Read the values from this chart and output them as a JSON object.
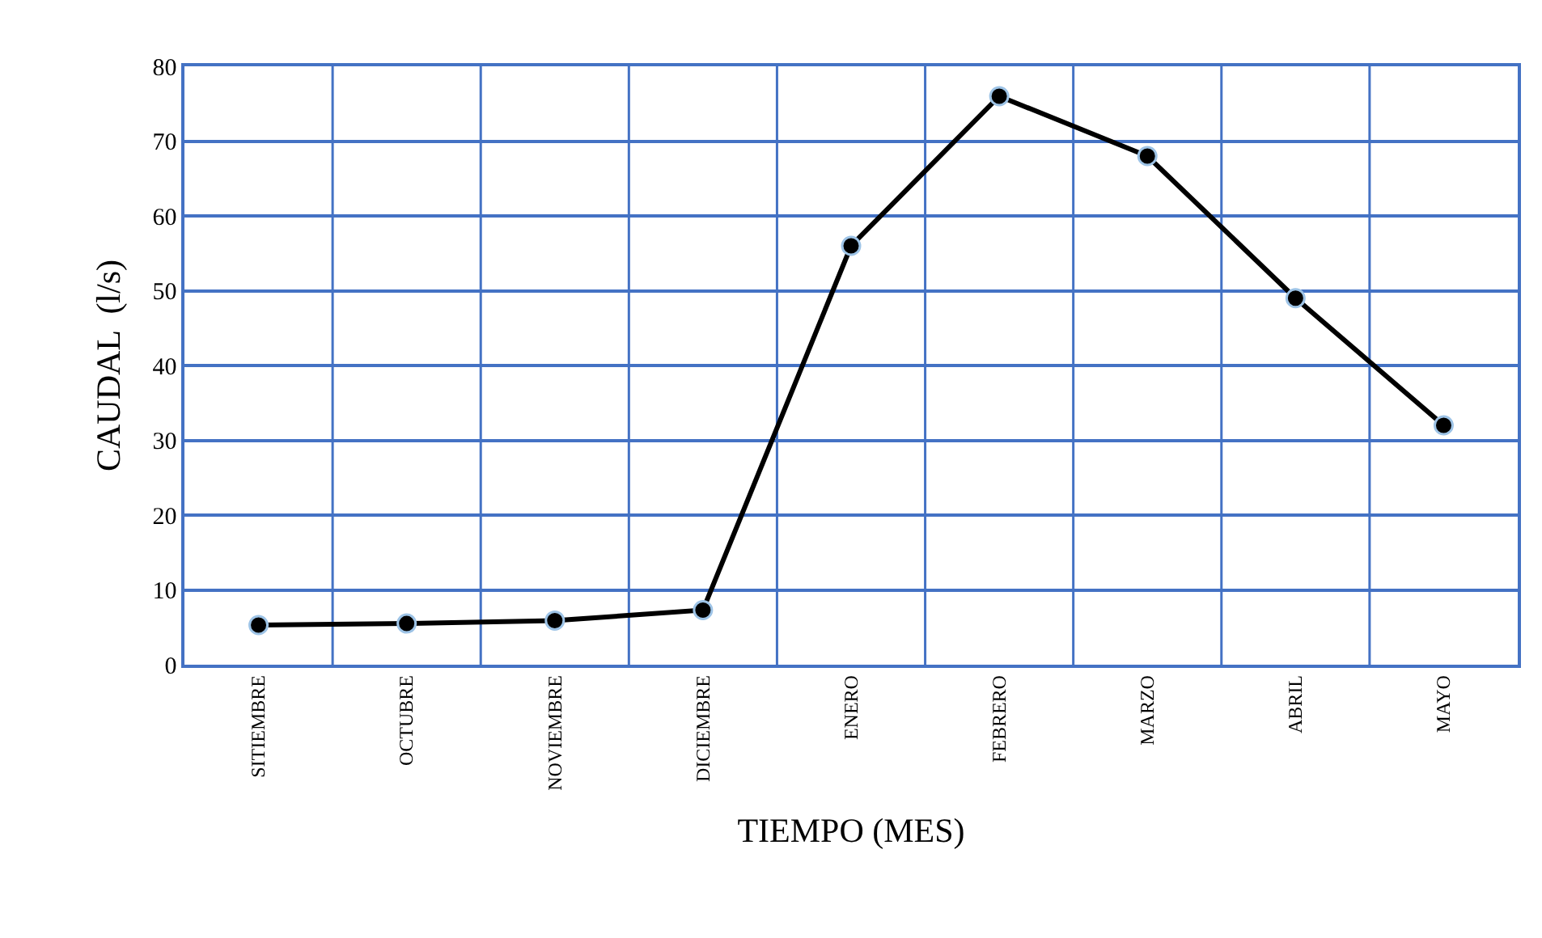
{
  "chart_data": {
    "type": "line",
    "xlabel": "TIEMPO (MES)",
    "ylabel": "CAUDAL  (l/s)",
    "categories": [
      "SITIEMBRE",
      "OCTUBRE",
      "NOVIEMBRE",
      "DICIEMBRE",
      "ENERO",
      "FEBRERO",
      "MARZO",
      "ABRIL",
      "MAYO"
    ],
    "series": [
      {
        "color": "#000000",
        "values": [
          5.3,
          5.5,
          5.9,
          7.3,
          56,
          76,
          68,
          49,
          32
        ]
      }
    ],
    "ylim": [
      0,
      80
    ],
    "yticks": [
      0,
      10,
      20,
      30,
      40,
      50,
      60,
      70,
      80
    ],
    "grid": true,
    "marker": "circle",
    "line_style": "solid"
  }
}
